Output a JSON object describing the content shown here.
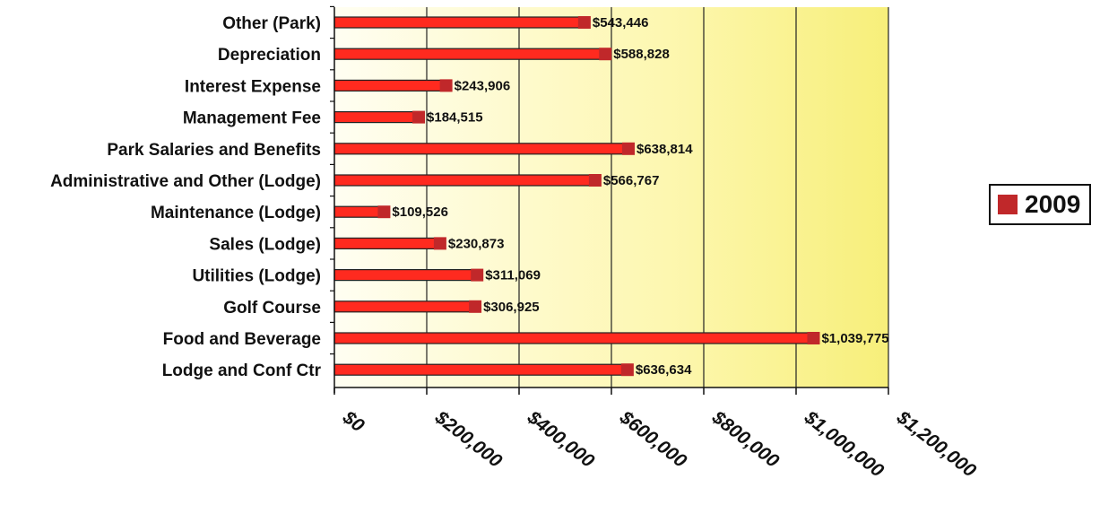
{
  "chart_data": {
    "type": "bar",
    "orientation": "horizontal",
    "categories": [
      "Other (Park)",
      "Depreciation",
      "Interest Expense",
      "Management Fee",
      "Park Salaries and Benefits",
      "Administrative and Other (Lodge)",
      "Maintenance (Lodge)",
      "Sales (Lodge)",
      "Utilities (Lodge)",
      "Golf Course",
      "Food and Beverage",
      "Lodge and Conf Ctr"
    ],
    "series": [
      {
        "name": "2009",
        "color": "#ff2a1f",
        "values": [
          543446,
          588828,
          243906,
          184515,
          638814,
          566767,
          109526,
          230873,
          311069,
          306925,
          1039775,
          636634
        ],
        "value_labels": [
          "$543,446",
          "$588,828",
          "$243,906",
          "$184,515",
          "$638,814",
          "$566,767",
          "$109,526",
          "$230,873",
          "$311,069",
          "$306,925",
          "$1,039,775",
          "$636,634"
        ]
      }
    ],
    "xlim": [
      0,
      1200000
    ],
    "xticks": [
      0,
      200000,
      400000,
      600000,
      800000,
      1000000,
      1200000
    ],
    "xtick_labels": [
      "$0",
      "$200,000",
      "$400,000",
      "$600,000",
      "$800,000",
      "$1,000,000",
      "$1,200,000"
    ],
    "title": "",
    "xlabel": "",
    "ylabel": "",
    "grid": true,
    "legend_position": "right",
    "plot_background": "yellow gradient"
  },
  "legend": {
    "label": "2009",
    "swatch_color": "#c0282a"
  }
}
